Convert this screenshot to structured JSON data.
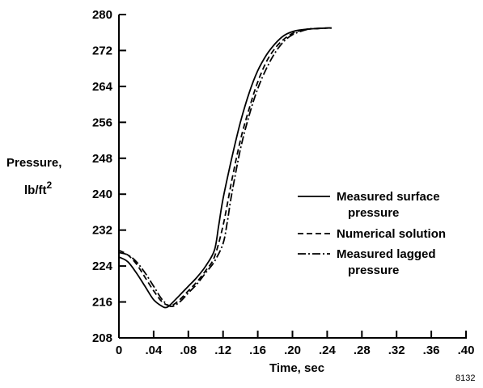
{
  "chart_data": {
    "type": "line",
    "title": "",
    "xlabel": "Time, sec",
    "ylabel": "Pressure,",
    "ylabel_unit": "lb/ft",
    "ylabel_unit_sup": "2",
    "xlim": [
      0,
      0.4
    ],
    "ylim": [
      208,
      280
    ],
    "grid": false,
    "legend_position": "center-right",
    "x_ticks": [
      0,
      0.04,
      0.08,
      0.12,
      0.16,
      0.2,
      0.24,
      0.28,
      0.32,
      0.36,
      0.4
    ],
    "x_tick_labels": [
      "0",
      ".04",
      ".08",
      ".12",
      ".16",
      ".20",
      ".24",
      ".28",
      ".32",
      ".36",
      ".40"
    ],
    "y_ticks": [
      208,
      216,
      224,
      232,
      240,
      248,
      256,
      264,
      272,
      280
    ],
    "y_tick_labels": [
      "208",
      "216",
      "224",
      "232",
      "240",
      "248",
      "256",
      "264",
      "272",
      "280"
    ],
    "series": [
      {
        "name": "Measured surface pressure",
        "legend_lines": [
          "Measured surface",
          "pressure"
        ],
        "style": "solid",
        "x": [
          0,
          0.01,
          0.02,
          0.03,
          0.04,
          0.05,
          0.055,
          0.06,
          0.07,
          0.08,
          0.09,
          0.1,
          0.11,
          0.115,
          0.12,
          0.13,
          0.14,
          0.15,
          0.16,
          0.17,
          0.18,
          0.19,
          0.2,
          0.21,
          0.22,
          0.23,
          0.24,
          0.245
        ],
        "y": [
          226,
          225,
          222.5,
          219.5,
          216.5,
          215,
          214.8,
          215.5,
          217.5,
          219.5,
          221.5,
          224,
          227.5,
          233,
          239,
          248,
          256,
          262.5,
          267.5,
          271,
          273.5,
          275.3,
          276.2,
          276.6,
          276.8,
          276.9,
          277,
          277
        ]
      },
      {
        "name": "Numerical solution",
        "legend_lines": [
          "Numerical solution"
        ],
        "style": "dashed",
        "x": [
          0,
          0.01,
          0.02,
          0.03,
          0.04,
          0.05,
          0.06,
          0.07,
          0.08,
          0.09,
          0.1,
          0.11,
          0.12,
          0.13,
          0.14,
          0.15,
          0.16,
          0.17,
          0.18,
          0.19,
          0.2,
          0.21,
          0.22,
          0.23,
          0.24,
          0.245
        ],
        "y": [
          227.5,
          226.5,
          224.5,
          221.5,
          218.5,
          216,
          215.2,
          216.5,
          218.5,
          220.5,
          223,
          226,
          233,
          243,
          252,
          259,
          265,
          269.5,
          272.5,
          274.5,
          275.8,
          276.5,
          276.8,
          276.9,
          277,
          277
        ]
      },
      {
        "name": "Measured lagged pressure",
        "legend_lines": [
          "Measured lagged",
          "pressure"
        ],
        "style": "dashdot",
        "x": [
          0,
          0.01,
          0.02,
          0.03,
          0.04,
          0.05,
          0.06,
          0.07,
          0.08,
          0.09,
          0.1,
          0.11,
          0.12,
          0.125,
          0.13,
          0.14,
          0.15,
          0.16,
          0.17,
          0.18,
          0.19,
          0.2,
          0.21,
          0.22,
          0.23,
          0.24,
          0.245
        ],
        "y": [
          227,
          226.5,
          225,
          222.5,
          219.5,
          216.5,
          215,
          216,
          218,
          220,
          222.5,
          225,
          229,
          234,
          240,
          250,
          257.5,
          263.5,
          268,
          271.5,
          274,
          275.5,
          276.3,
          276.8,
          276.9,
          277,
          277
        ]
      }
    ]
  },
  "figure_code": "8132"
}
